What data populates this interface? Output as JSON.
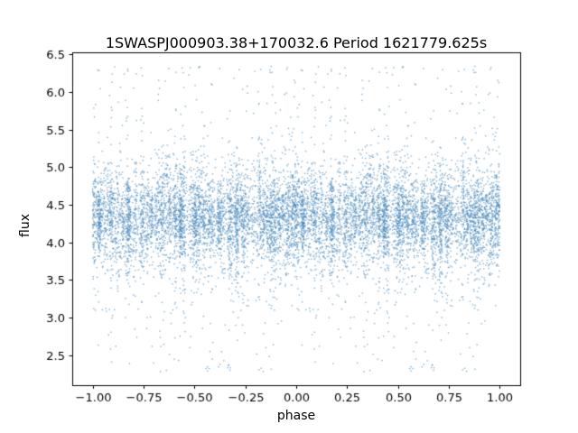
{
  "figure": {
    "background_color": "#ffffff",
    "axis_color": "#000000"
  },
  "chart_data": {
    "type": "scatter",
    "title": "1SWASPJ000903.38+170032.6 Period 1621779.625s",
    "xlabel": "phase",
    "ylabel": "flux",
    "xlim": [
      -1.1,
      1.1
    ],
    "ylim": [
      2.1,
      6.53
    ],
    "xticks": [
      -1.0,
      -0.75,
      -0.5,
      -0.25,
      0.0,
      0.25,
      0.5,
      0.75,
      1.0
    ],
    "xtick_labels": [
      "−1.00",
      "−0.75",
      "−0.50",
      "−0.25",
      "0.00",
      "0.25",
      "0.50",
      "0.75",
      "1.00"
    ],
    "yticks": [
      2.5,
      3.0,
      3.5,
      4.0,
      4.5,
      5.0,
      5.5,
      6.0,
      6.5
    ],
    "ytick_labels": [
      "2.5",
      "3.0",
      "3.5",
      "4.0",
      "4.5",
      "5.0",
      "5.5",
      "6.0",
      "6.5"
    ],
    "marker_color": "#4787ba",
    "marker_alpha": 0.65,
    "marker_size": 1.4,
    "grid": false,
    "legend": null,
    "phase_range_plotted": [
      -1.0,
      1.0
    ],
    "flux_mean": 4.33,
    "flux_std": 0.33,
    "flux_min": 2.28,
    "flux_max": 6.35,
    "n_points": 5500,
    "mirrored_halves": true,
    "n_phase_columns": 160,
    "outlier_fraction": 0.05,
    "seed": 42
  }
}
